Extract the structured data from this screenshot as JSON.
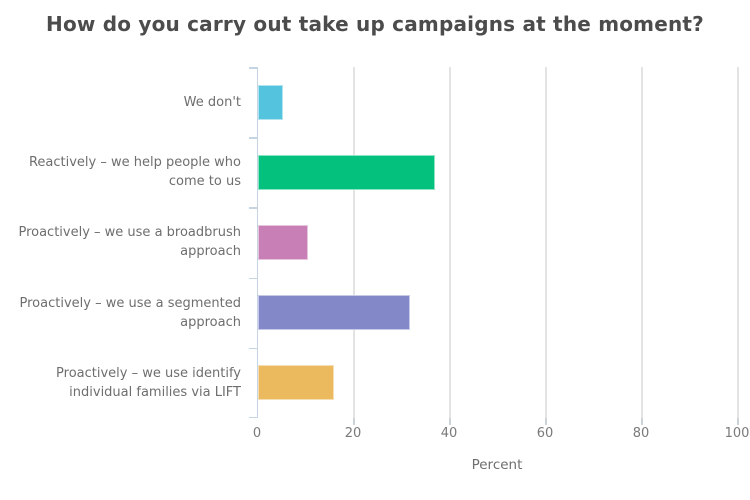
{
  "chart": {
    "background_color": "#ffffff",
    "axis_line_color": "#c5d5e3",
    "gridline_color": "#e3e3e3",
    "title_color": "#4c4c4c",
    "label_color": "#6e6e6e",
    "tick_label_color": "#7a7a7a"
  },
  "chart_data": {
    "type": "bar",
    "orientation": "horizontal",
    "title": "How do you carry out take up campaigns at the moment?",
    "categories": [
      "We don't",
      "Reactively – we help people who come to us",
      "Proactively – we use a broadbrush approach",
      "Proactively – we use a segmented approach",
      "Proactively – we use identify individual families via LIFT"
    ],
    "category_lines": [
      [
        "We don't"
      ],
      [
        "Reactively – we help people who",
        "come to us"
      ],
      [
        "Proactively – we use a broadbrush",
        "approach"
      ],
      [
        "Proactively – we use a segmented",
        "approach"
      ],
      [
        "Proactively – we use identify",
        "individual families via LIFT"
      ]
    ],
    "values": [
      5.3,
      36.8,
      10.5,
      31.6,
      15.8
    ],
    "bar_colors": [
      "#54c3dd",
      "#04c17e",
      "#c77fb5",
      "#8389c8",
      "#ebb95e"
    ],
    "xlabel": "Percent",
    "ylabel": "",
    "xlim": [
      0,
      100
    ],
    "x_ticks": [
      0,
      20,
      40,
      60,
      80,
      100
    ],
    "grid": true,
    "legend": false
  }
}
